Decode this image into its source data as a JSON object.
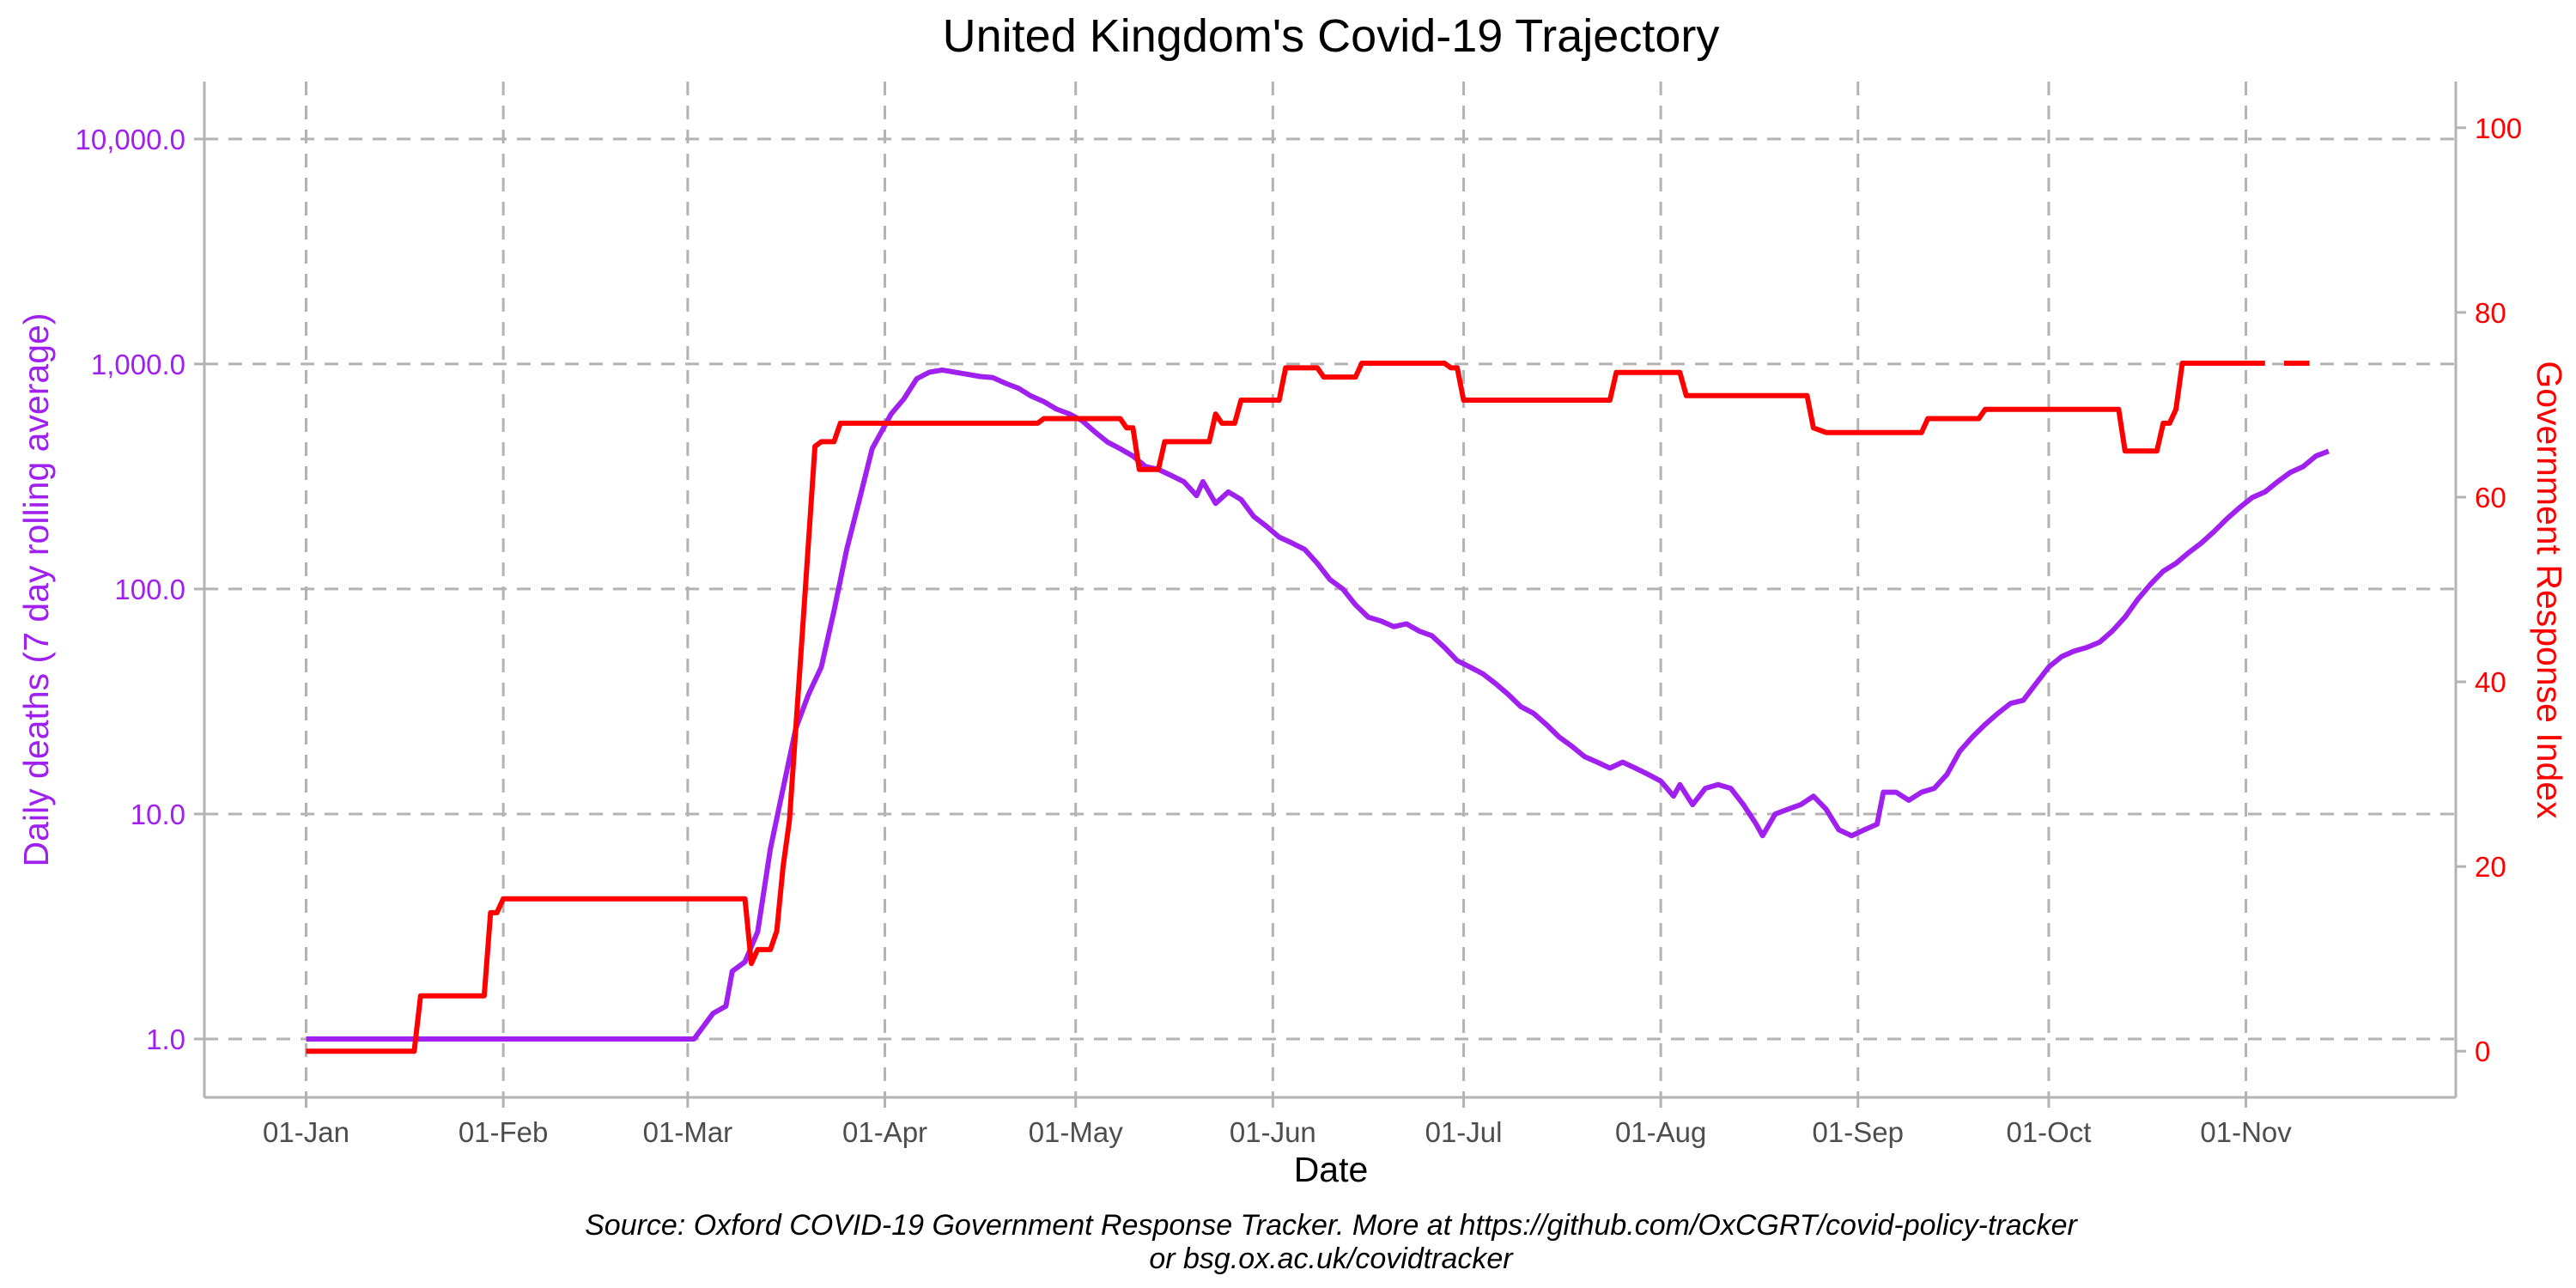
{
  "chart_data": {
    "type": "line",
    "title": "United Kingdom's Covid-19 Trajectory",
    "xlabel": "Date",
    "ylabel_left": "Daily deaths (7 day rolling average)",
    "ylabel_right": "Government Response Index",
    "caption_line1": "Source: Oxford COVID-19 Government Response Tracker. More at https://github.com/OxCGRT/covid-policy-tracker",
    "caption_line2": "or bsg.ox.ac.uk/covidtracker",
    "x_ticks": [
      {
        "label": "01-Jan",
        "date": "2020-01-01"
      },
      {
        "label": "01-Feb",
        "date": "2020-02-01"
      },
      {
        "label": "01-Mar",
        "date": "2020-03-01"
      },
      {
        "label": "01-Apr",
        "date": "2020-04-01"
      },
      {
        "label": "01-May",
        "date": "2020-05-01"
      },
      {
        "label": "01-Jun",
        "date": "2020-06-01"
      },
      {
        "label": "01-Jul",
        "date": "2020-07-01"
      },
      {
        "label": "01-Aug",
        "date": "2020-08-01"
      },
      {
        "label": "01-Sep",
        "date": "2020-09-01"
      },
      {
        "label": "01-Oct",
        "date": "2020-10-01"
      },
      {
        "label": "01-Nov",
        "date": "2020-11-01"
      }
    ],
    "xlim": [
      "2019-12-16",
      "2020-12-04"
    ],
    "y_left": {
      "scale": "log10",
      "lim": [
        0.55,
        18000
      ],
      "ticks": [
        1,
        10,
        100,
        1000,
        10000
      ],
      "tick_labels": [
        "1.0",
        "10.0",
        "100.0",
        "1,000.0",
        "10,000.0"
      ]
    },
    "y_right": {
      "scale": "linear",
      "lim": [
        -5,
        105
      ],
      "ticks": [
        0,
        20,
        40,
        60,
        80,
        100
      ],
      "tick_labels": [
        "0",
        "20",
        "40",
        "60",
        "80",
        "100"
      ]
    },
    "grid": true,
    "colors": {
      "deaths": "#a020f0",
      "index": "#ff0000",
      "grid": "#b3b3b3",
      "tick_text": "#4d4d4d"
    },
    "series": [
      {
        "axis": "left",
        "color": "#a020f0",
        "points": [
          [
            "2020-01-01",
            1
          ],
          [
            "2020-03-02",
            1
          ],
          [
            "2020-03-05",
            1.3
          ],
          [
            "2020-03-07",
            1.4
          ],
          [
            "2020-03-08",
            2.0
          ],
          [
            "2020-03-10",
            2.2
          ],
          [
            "2020-03-12",
            3.0
          ],
          [
            "2020-03-14",
            7
          ],
          [
            "2020-03-16",
            13
          ],
          [
            "2020-03-18",
            24
          ],
          [
            "2020-03-20",
            34
          ],
          [
            "2020-03-22",
            45
          ],
          [
            "2020-03-24",
            80
          ],
          [
            "2020-03-26",
            150
          ],
          [
            "2020-03-28",
            250
          ],
          [
            "2020-03-30",
            420
          ],
          [
            "2020-04-02",
            600
          ],
          [
            "2020-04-04",
            700
          ],
          [
            "2020-04-06",
            860
          ],
          [
            "2020-04-08",
            920
          ],
          [
            "2020-04-10",
            940
          ],
          [
            "2020-04-12",
            920
          ],
          [
            "2020-04-14",
            900
          ],
          [
            "2020-04-16",
            880
          ],
          [
            "2020-04-18",
            870
          ],
          [
            "2020-04-20",
            820
          ],
          [
            "2020-04-22",
            780
          ],
          [
            "2020-04-24",
            720
          ],
          [
            "2020-04-26",
            680
          ],
          [
            "2020-04-28",
            630
          ],
          [
            "2020-04-30",
            600
          ],
          [
            "2020-05-02",
            560
          ],
          [
            "2020-05-04",
            500
          ],
          [
            "2020-05-06",
            450
          ],
          [
            "2020-05-08",
            420
          ],
          [
            "2020-05-10",
            390
          ],
          [
            "2020-05-12",
            350
          ],
          [
            "2020-05-14",
            340
          ],
          [
            "2020-05-16",
            320
          ],
          [
            "2020-05-18",
            300
          ],
          [
            "2020-05-20",
            260
          ],
          [
            "2020-05-21",
            300
          ],
          [
            "2020-05-23",
            240
          ],
          [
            "2020-05-25",
            270
          ],
          [
            "2020-05-27",
            250
          ],
          [
            "2020-05-29",
            210
          ],
          [
            "2020-05-31",
            190
          ],
          [
            "2020-06-02",
            170
          ],
          [
            "2020-06-04",
            160
          ],
          [
            "2020-06-06",
            150
          ],
          [
            "2020-06-08",
            130
          ],
          [
            "2020-06-10",
            110
          ],
          [
            "2020-06-12",
            100
          ],
          [
            "2020-06-14",
            85
          ],
          [
            "2020-06-16",
            75
          ],
          [
            "2020-06-18",
            72
          ],
          [
            "2020-06-20",
            68
          ],
          [
            "2020-06-22",
            70
          ],
          [
            "2020-06-24",
            65
          ],
          [
            "2020-06-26",
            62
          ],
          [
            "2020-06-28",
            55
          ],
          [
            "2020-06-30",
            48
          ],
          [
            "2020-07-02",
            45
          ],
          [
            "2020-07-04",
            42
          ],
          [
            "2020-07-06",
            38
          ],
          [
            "2020-07-08",
            34
          ],
          [
            "2020-07-10",
            30
          ],
          [
            "2020-07-12",
            28
          ],
          [
            "2020-07-14",
            25
          ],
          [
            "2020-07-16",
            22
          ],
          [
            "2020-07-18",
            20
          ],
          [
            "2020-07-20",
            18
          ],
          [
            "2020-07-22",
            17
          ],
          [
            "2020-07-24",
            16
          ],
          [
            "2020-07-26",
            17
          ],
          [
            "2020-07-28",
            16
          ],
          [
            "2020-07-30",
            15
          ],
          [
            "2020-08-01",
            14
          ],
          [
            "2020-08-03",
            12
          ],
          [
            "2020-08-04",
            13.5
          ],
          [
            "2020-08-06",
            11
          ],
          [
            "2020-08-08",
            13
          ],
          [
            "2020-08-10",
            13.5
          ],
          [
            "2020-08-12",
            13
          ],
          [
            "2020-08-14",
            11
          ],
          [
            "2020-08-16",
            9
          ],
          [
            "2020-08-17",
            8
          ],
          [
            "2020-08-19",
            10
          ],
          [
            "2020-08-21",
            10.5
          ],
          [
            "2020-08-23",
            11
          ],
          [
            "2020-08-25",
            12
          ],
          [
            "2020-08-27",
            10.5
          ],
          [
            "2020-08-29",
            8.5
          ],
          [
            "2020-08-31",
            8
          ],
          [
            "2020-09-02",
            8.5
          ],
          [
            "2020-09-04",
            9
          ],
          [
            "2020-09-05",
            12.5
          ],
          [
            "2020-09-07",
            12.5
          ],
          [
            "2020-09-09",
            11.5
          ],
          [
            "2020-09-11",
            12.5
          ],
          [
            "2020-09-13",
            13
          ],
          [
            "2020-09-15",
            15
          ],
          [
            "2020-09-17",
            19
          ],
          [
            "2020-09-19",
            22
          ],
          [
            "2020-09-21",
            25
          ],
          [
            "2020-09-23",
            28
          ],
          [
            "2020-09-25",
            31
          ],
          [
            "2020-09-27",
            32
          ],
          [
            "2020-09-29",
            38
          ],
          [
            "2020-10-01",
            45
          ],
          [
            "2020-10-03",
            50
          ],
          [
            "2020-10-05",
            53
          ],
          [
            "2020-10-07",
            55
          ],
          [
            "2020-10-09",
            58
          ],
          [
            "2020-10-11",
            65
          ],
          [
            "2020-10-13",
            75
          ],
          [
            "2020-10-15",
            90
          ],
          [
            "2020-10-17",
            105
          ],
          [
            "2020-10-19",
            120
          ],
          [
            "2020-10-21",
            130
          ],
          [
            "2020-10-23",
            145
          ],
          [
            "2020-10-25",
            160
          ],
          [
            "2020-10-27",
            180
          ],
          [
            "2020-10-29",
            205
          ],
          [
            "2020-10-31",
            230
          ],
          [
            "2020-11-02",
            255
          ],
          [
            "2020-11-04",
            270
          ],
          [
            "2020-11-06",
            300
          ],
          [
            "2020-11-08",
            330
          ],
          [
            "2020-11-10",
            350
          ],
          [
            "2020-11-12",
            390
          ],
          [
            "2020-11-14",
            410
          ]
        ]
      },
      {
        "axis": "right",
        "color": "#ff0000",
        "points": [
          [
            "2020-01-01",
            0
          ],
          [
            "2020-01-18",
            0
          ],
          [
            "2020-01-19",
            6
          ],
          [
            "2020-01-29",
            6
          ],
          [
            "2020-01-30",
            15
          ],
          [
            "2020-01-31",
            15
          ],
          [
            "2020-02-01",
            16.5
          ],
          [
            "2020-03-10",
            16.5
          ],
          [
            "2020-03-11",
            9.5
          ],
          [
            "2020-03-12",
            11
          ],
          [
            "2020-03-14",
            11
          ],
          [
            "2020-03-15",
            13
          ],
          [
            "2020-03-16",
            20
          ],
          [
            "2020-03-17",
            25
          ],
          [
            "2020-03-19",
            45
          ],
          [
            "2020-03-21",
            65.5
          ],
          [
            "2020-03-22",
            66
          ],
          [
            "2020-03-24",
            66
          ],
          [
            "2020-03-25",
            68
          ],
          [
            "2020-04-25",
            68
          ],
          [
            "2020-04-26",
            68.5
          ],
          [
            "2020-05-08",
            68.5
          ],
          [
            "2020-05-09",
            67.5
          ],
          [
            "2020-05-10",
            67.5
          ],
          [
            "2020-05-11",
            63
          ],
          [
            "2020-05-14",
            63
          ],
          [
            "2020-05-15",
            66
          ],
          [
            "2020-05-22",
            66
          ],
          [
            "2020-05-23",
            69
          ],
          [
            "2020-05-24",
            68
          ],
          [
            "2020-05-26",
            68
          ],
          [
            "2020-05-27",
            70.5
          ],
          [
            "2020-06-02",
            70.5
          ],
          [
            "2020-06-03",
            74
          ],
          [
            "2020-06-08",
            74
          ],
          [
            "2020-06-09",
            73
          ],
          [
            "2020-06-14",
            73
          ],
          [
            "2020-06-15",
            74.5
          ],
          [
            "2020-06-28",
            74.5
          ],
          [
            "2020-06-29",
            74
          ],
          [
            "2020-06-30",
            74
          ],
          [
            "2020-07-01",
            70.5
          ],
          [
            "2020-07-24",
            70.5
          ],
          [
            "2020-07-25",
            73.5
          ],
          [
            "2020-08-04",
            73.5
          ],
          [
            "2020-08-05",
            71
          ],
          [
            "2020-08-24",
            71
          ],
          [
            "2020-08-25",
            67.5
          ],
          [
            "2020-08-27",
            67
          ],
          [
            "2020-09-11",
            67
          ],
          [
            "2020-09-12",
            68.5
          ],
          [
            "2020-09-20",
            68.5
          ],
          [
            "2020-09-21",
            69.5
          ],
          [
            "2020-10-12",
            69.5
          ],
          [
            "2020-10-13",
            65
          ],
          [
            "2020-10-18",
            65
          ],
          [
            "2020-10-19",
            68
          ],
          [
            "2020-10-20",
            68
          ],
          [
            "2020-10-21",
            69.5
          ],
          [
            "2020-10-22",
            74.5
          ],
          [
            "2020-11-04",
            74.5
          ]
        ],
        "points_segment2": [
          [
            "2020-11-07",
            74.5
          ],
          [
            "2020-11-11",
            74.5
          ]
        ]
      }
    ]
  }
}
